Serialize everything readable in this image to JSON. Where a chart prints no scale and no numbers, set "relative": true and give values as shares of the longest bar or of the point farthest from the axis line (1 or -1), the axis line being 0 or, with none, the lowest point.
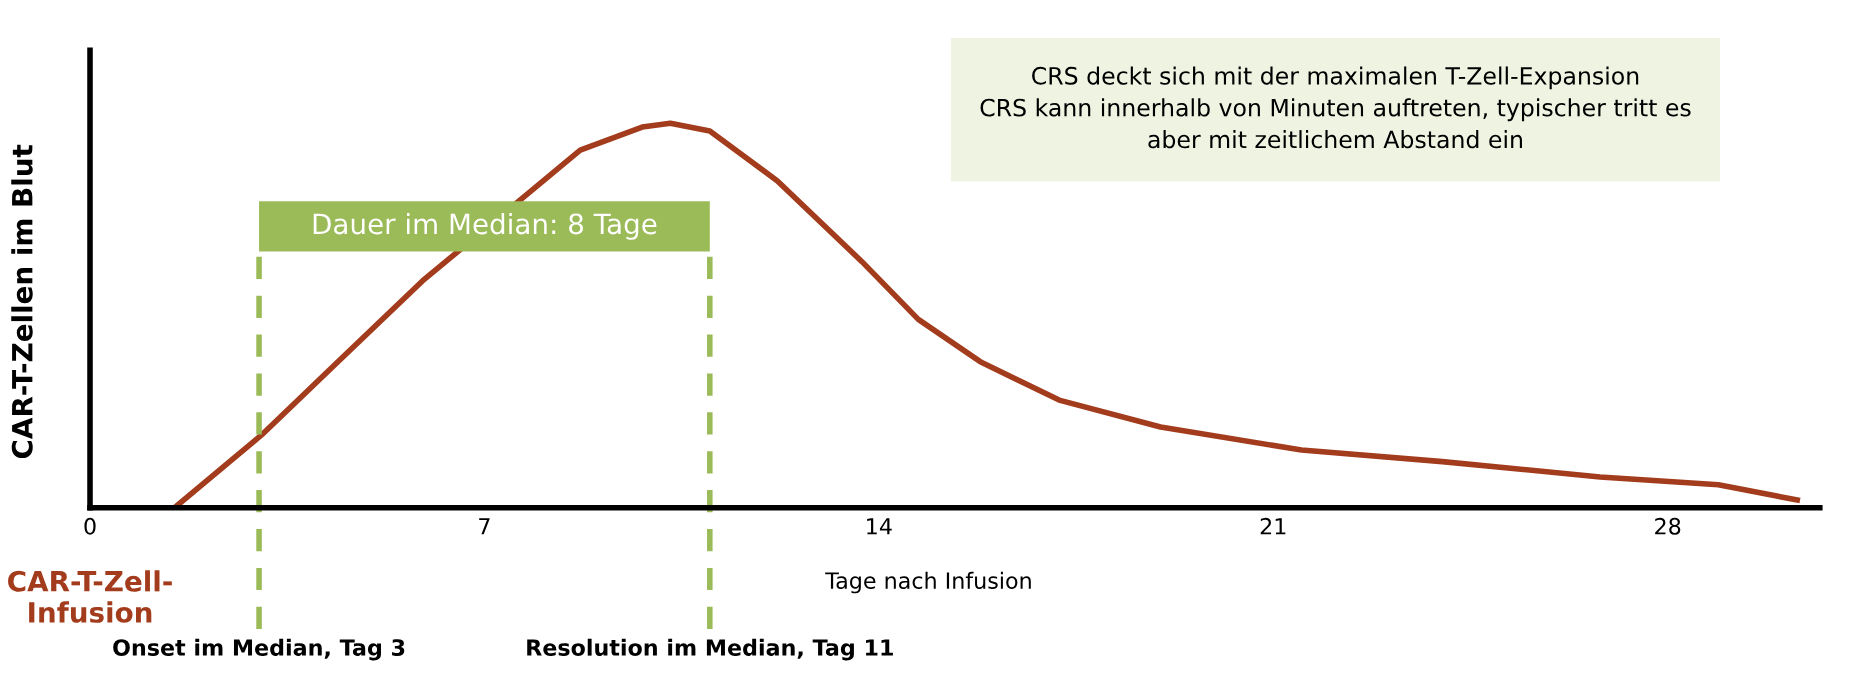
{
  "chart_data": {
    "type": "line",
    "relative": true,
    "xlabel": "Tage nach Infusion",
    "ylabel": "CAR-T-Zellen im Blut",
    "xlim": [
      0,
      30.7
    ],
    "xticks": [
      0,
      7,
      14,
      21,
      28
    ],
    "tick_labels": "x",
    "grid": false,
    "legend": false,
    "marker": "none",
    "line_style": "solid",
    "series": [
      {
        "color": "#a33c1c",
        "x": [
          1.5,
          3.05,
          4.4,
          5.9,
          8.7,
          9.8,
          10.3,
          11.0,
          12.2,
          13.7,
          14.7,
          15.8,
          17.2,
          19.0,
          21.5,
          24.0,
          26.8,
          28.9,
          30.3
        ],
        "values": [
          0,
          0.19,
          0.38,
          0.59,
          0.93,
          0.99,
          1,
          0.98,
          0.85,
          0.64,
          0.49,
          0.38,
          0.28,
          0.21,
          0.15,
          0.12,
          0.08,
          0.06,
          0.02
        ]
      }
    ],
    "ref_lines": [
      {
        "axis": "x",
        "value": 3,
        "label": "Onset im Median, Tag 3",
        "color": "#9bbb59",
        "line_style": "dashed"
      },
      {
        "axis": "x",
        "value": 11,
        "label": "Resolution im Median, Tag 11",
        "color": "#9bbb59",
        "line_style": "dashed"
      }
    ],
    "bands": [
      {
        "axis": "x",
        "from": 3,
        "to": 11,
        "label": "Dauer im Median: 8 Tage",
        "color": "#9bbb59"
      }
    ],
    "annotations": [
      "CRS deckt sich mit der maximalen T-Zell-Expansion\nCRS kann innerhalb von Minuten auftreten, typischer tritt es\naber mit zeitlichem Abstand ein",
      "CAR-T-Zell-\nInfusion"
    ]
  }
}
